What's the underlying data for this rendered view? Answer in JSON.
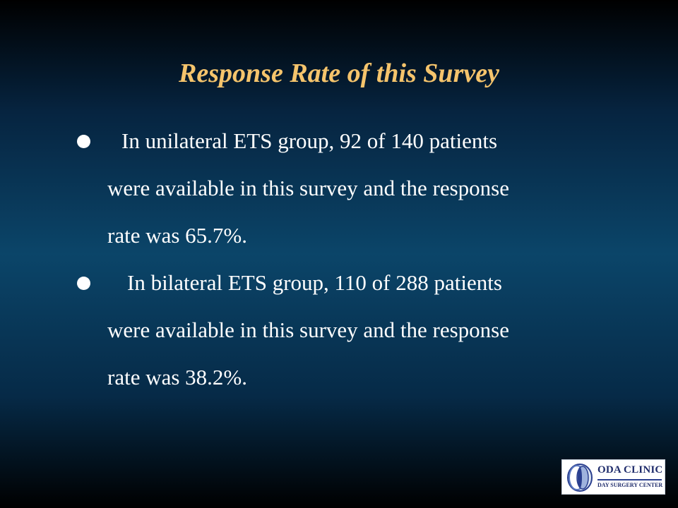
{
  "slide": {
    "title": "Response Rate of this Survey",
    "bullets": [
      {
        "first_line": "In unilateral ETS group, 92 of 140 patients",
        "second_line": "were available in this survey and the response",
        "third_line": "rate was 65.7%."
      },
      {
        "first_line": "In bilateral ETS group, 110 of 288 patients",
        "second_line": "were available in this survey and the response",
        "third_line": "rate was 38.2%."
      }
    ]
  },
  "logo": {
    "name": "ODA CLINIC",
    "subtitle": "DAY SURGERY CENTER"
  },
  "colors": {
    "title": "#f5c46c",
    "body_text": "#ffffff",
    "background_mid": "#0b4569",
    "logo_text": "#1f2c6b"
  }
}
